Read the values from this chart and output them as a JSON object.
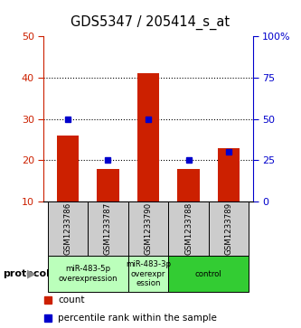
{
  "title": "GDS5347 / 205414_s_at",
  "samples": [
    "GSM1233786",
    "GSM1233787",
    "GSM1233790",
    "GSM1233788",
    "GSM1233789"
  ],
  "count_values": [
    26.0,
    18.0,
    41.0,
    18.0,
    23.0
  ],
  "percentile_values": [
    50,
    25,
    50,
    25,
    30
  ],
  "ylim_left": [
    10,
    50
  ],
  "ylim_right": [
    0,
    100
  ],
  "yticks_left": [
    10,
    20,
    30,
    40,
    50
  ],
  "yticks_right": [
    0,
    25,
    50,
    75,
    100
  ],
  "bar_color": "#cc2000",
  "marker_color": "#0000cc",
  "background_color": "#ffffff",
  "protocol_groups": [
    {
      "label": "miR-483-5p\noverexpression",
      "start": 0,
      "end": 1,
      "color": "#bbffbb"
    },
    {
      "label": "miR-483-3p\noverexpr\nession",
      "start": 2,
      "end": 2,
      "color": "#bbffbb"
    },
    {
      "label": "control",
      "start": 3,
      "end": 4,
      "color": "#33cc33"
    }
  ],
  "legend_count_label": "count",
  "legend_percentile_label": "percentile rank within the sample",
  "protocol_label": "protocol"
}
